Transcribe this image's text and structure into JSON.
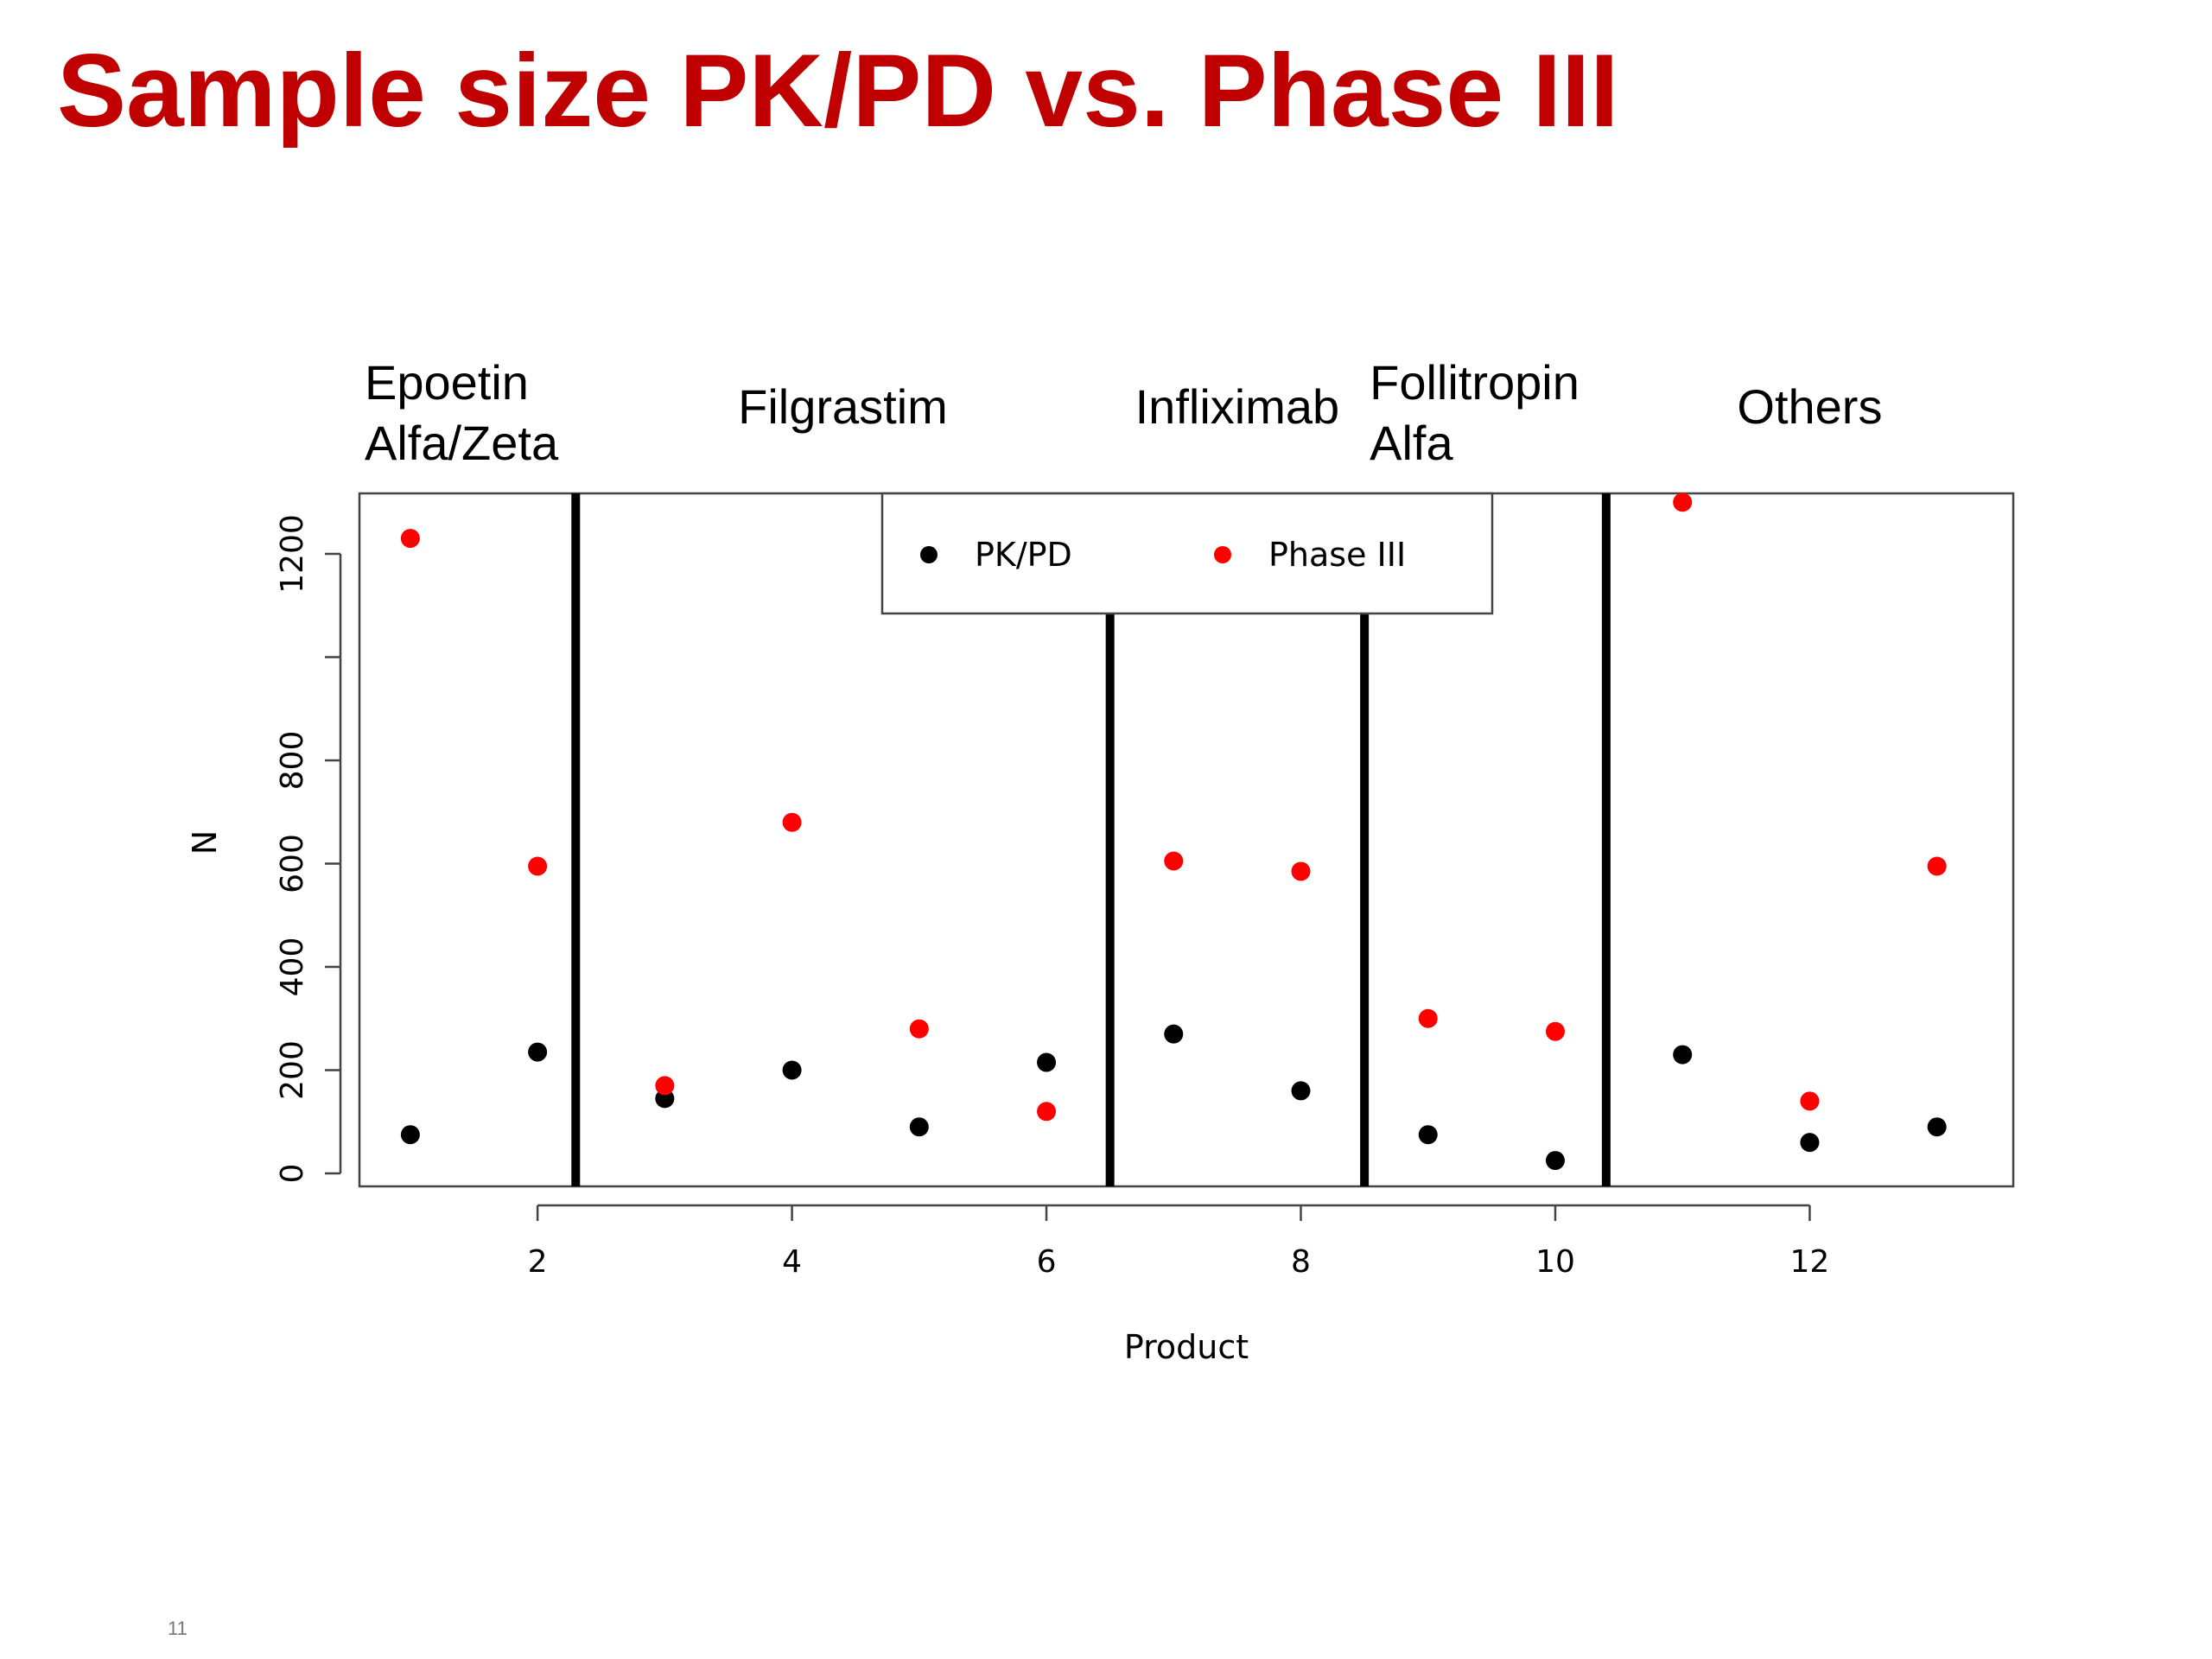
{
  "slide": {
    "title": "Sample size PK/PD vs. Phase III",
    "page_number": "11"
  },
  "colors": {
    "title": "#c00000",
    "pkpd": "#000000",
    "phase3": "#ff0000"
  },
  "chart_data": {
    "type": "scatter",
    "title": "",
    "xlabel": "Product",
    "ylabel": "N",
    "xlim": [
      0.6,
      13.6
    ],
    "ylim": [
      0,
      1300
    ],
    "x_ticks": [
      2,
      4,
      6,
      8,
      10,
      12
    ],
    "y_ticks": [
      0,
      200,
      400,
      600,
      800,
      1000,
      1200
    ],
    "y_tick_labels": [
      "0",
      "200",
      "400",
      "600",
      "800",
      "",
      "1200"
    ],
    "legend_position": "top-center",
    "group_separators": [
      2.3,
      6.5,
      8.5,
      10.4
    ],
    "groups": [
      {
        "label_lines": [
          "Epoetin",
          "Alfa/Zeta"
        ],
        "x_start": 0.6,
        "x_end": 2.3
      },
      {
        "label_lines": [
          "Filgrastim"
        ],
        "x_start": 2.3,
        "x_end": 6.5
      },
      {
        "label_lines": [
          "Infliximab"
        ],
        "x_start": 6.5,
        "x_end": 8.5
      },
      {
        "label_lines": [
          "Follitropin",
          "Alfa"
        ],
        "x_start": 8.5,
        "x_end": 10.4
      },
      {
        "label_lines": [
          "Others"
        ],
        "x_start": 10.4,
        "x_end": 13.6
      }
    ],
    "series": [
      {
        "name": "PK/PD",
        "color": "#000000",
        "x": [
          1,
          2,
          3,
          4,
          5,
          6,
          7,
          8,
          9,
          10,
          11,
          12,
          13
        ],
        "values": [
          75,
          235,
          145,
          200,
          90,
          215,
          270,
          160,
          75,
          25,
          230,
          60,
          90
        ]
      },
      {
        "name": "Phase III",
        "color": "#ff0000",
        "x": [
          1,
          2,
          3,
          4,
          5,
          6,
          7,
          8,
          9,
          10,
          11,
          12,
          13
        ],
        "values": [
          1230,
          595,
          170,
          680,
          280,
          120,
          605,
          585,
          300,
          275,
          1300,
          140,
          595
        ]
      }
    ]
  }
}
